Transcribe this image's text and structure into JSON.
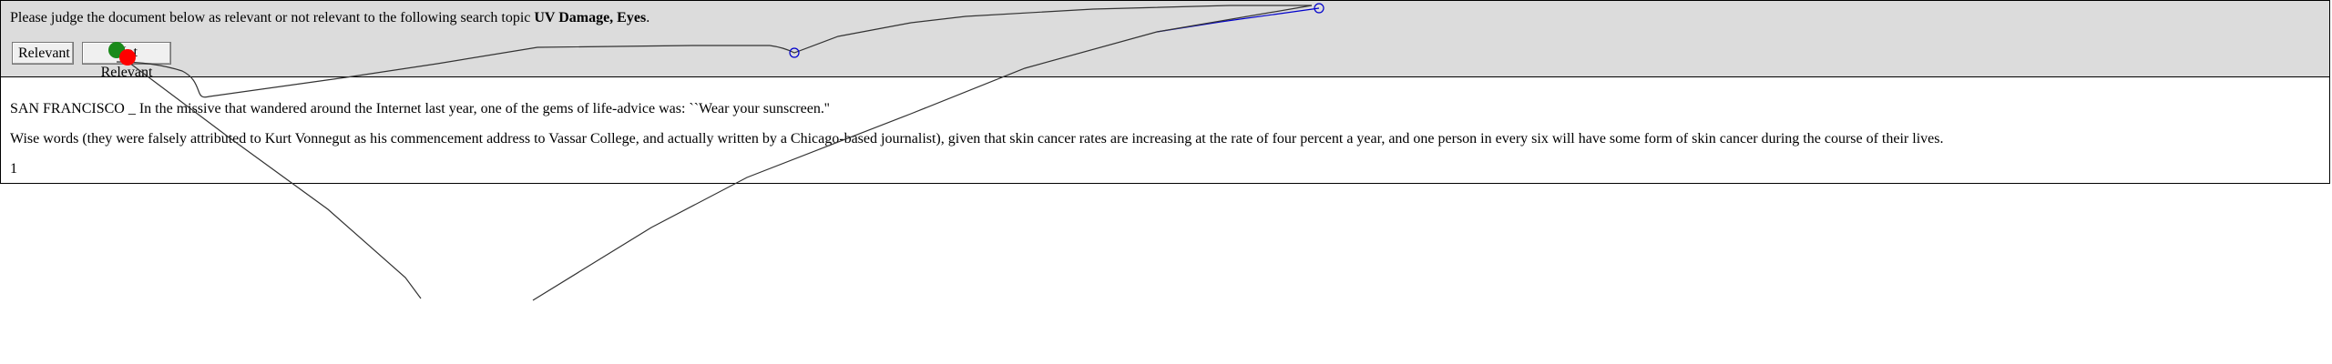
{
  "prompt": {
    "text": "Please judge the document below as relevant or not relevant to the following search topic ",
    "topic": "UV Damage, Eyes",
    "suffix": "."
  },
  "buttons": {
    "relevant_label": "Relevant",
    "not_relevant_label": "Not Relevant"
  },
  "document": {
    "paragraph_1": "SAN FRANCISCO _ In the missive that wandered around the Internet last year, one of the gems of life-advice was: ``Wear your sunscreen.''",
    "paragraph_2": "Wise words (they were falsely attributed to Kurt Vonnegut as his commencement address to Vassar College, and actually written by a Chicago-based journalist), given that skin cancer rates are increasing at the rate of four percent a year, and one person in every six will have some form of skin cancer during the course of their lives.",
    "paragraph_3": "1"
  },
  "overlay_colors": {
    "trace": "#333333",
    "blue_trace": "#0000cc",
    "green_dot": "#1a8a1a",
    "red_dot": "#ff0000"
  }
}
